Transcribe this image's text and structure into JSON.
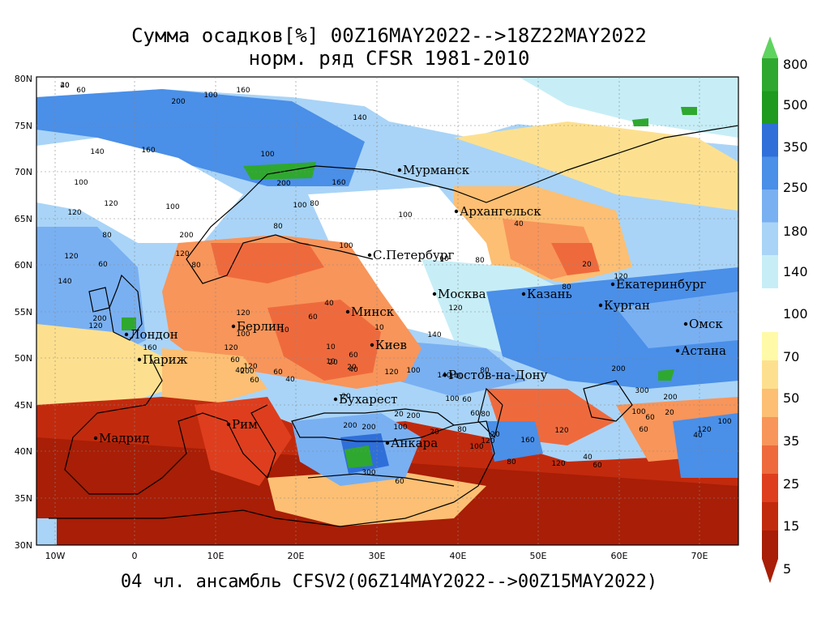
{
  "title": {
    "line1": "Сумма осадков[%] 00Z16MAY2022-->18Z22MAY2022",
    "line2": "норм. ряд CFSR 1981-2010"
  },
  "footer": "04 чл. ансамбль CFSV2(06Z14MAY2022-->00Z15MAY2022)",
  "axes": {
    "lat_labels": [
      "80N",
      "75N",
      "70N",
      "65N",
      "60N",
      "55N",
      "50N",
      "45N",
      "40N",
      "35N",
      "30N"
    ],
    "lon_labels": [
      "10W",
      "0",
      "10E",
      "20E",
      "30E",
      "40E",
      "50E",
      "60E",
      "70E"
    ]
  },
  "colorbar": {
    "labels": [
      "800",
      "500",
      "350",
      "250",
      "180",
      "140",
      "100",
      "70",
      "50",
      "35",
      "25",
      "15",
      "5"
    ],
    "colors": [
      "#5fd35f",
      "#2fa82f",
      "#1e9a1e",
      "#2f6fd9",
      "#4a8fe8",
      "#79b0f2",
      "#a9d4f7",
      "#c7eef7",
      "#fffaa8",
      "#fde08f",
      "#fcbf73",
      "#f8955a",
      "#ee6a3d",
      "#de3e1d",
      "#c22a0d",
      "#a81e06"
    ]
  },
  "cities": [
    {
      "name": "Мурманск"
    },
    {
      "name": "Архангельск"
    },
    {
      "name": "С.Петербург"
    },
    {
      "name": "Москва"
    },
    {
      "name": "Казань"
    },
    {
      "name": "Екатеринбург"
    },
    {
      "name": "Курган"
    },
    {
      "name": "Омск"
    },
    {
      "name": "Астана"
    },
    {
      "name": "Минск"
    },
    {
      "name": "Киев"
    },
    {
      "name": "Берлин"
    },
    {
      "name": "Лондон"
    },
    {
      "name": "Париж"
    },
    {
      "name": "Ростов-на-Дону"
    },
    {
      "name": "Бухарест"
    },
    {
      "name": "Рим"
    },
    {
      "name": "Мадрид"
    },
    {
      "name": "Анкара"
    }
  ],
  "contour_labels": [
    "40",
    "60",
    "200",
    "100",
    "160",
    "140",
    "100",
    "160",
    "140",
    "160",
    "100",
    "120",
    "120",
    "80",
    "100",
    "200",
    "120",
    "80",
    "100",
    "80",
    "40",
    "100",
    "60",
    "120",
    "140",
    "60",
    "80",
    "200",
    "100",
    "120",
    "120",
    "200",
    "120",
    "100",
    "160",
    "140",
    "100",
    "200",
    "120",
    "60",
    "20",
    "120",
    "140",
    "120",
    "80",
    "80",
    "10",
    "20",
    "100",
    "60",
    "40",
    "40",
    "60",
    "140",
    "60",
    "80",
    "20",
    "20",
    "100",
    "200",
    "60",
    "20",
    "120",
    "80",
    "160",
    "300",
    "200",
    "200",
    "60",
    "80",
    "100",
    "120",
    "120",
    "40",
    "60",
    "100",
    "60",
    "20",
    "60",
    "40",
    "120",
    "300",
    "200",
    "100",
    "200",
    "120",
    "20",
    "80",
    "40",
    "10",
    "60",
    "10",
    "40",
    "60",
    "20",
    "10",
    "20"
  ]
}
